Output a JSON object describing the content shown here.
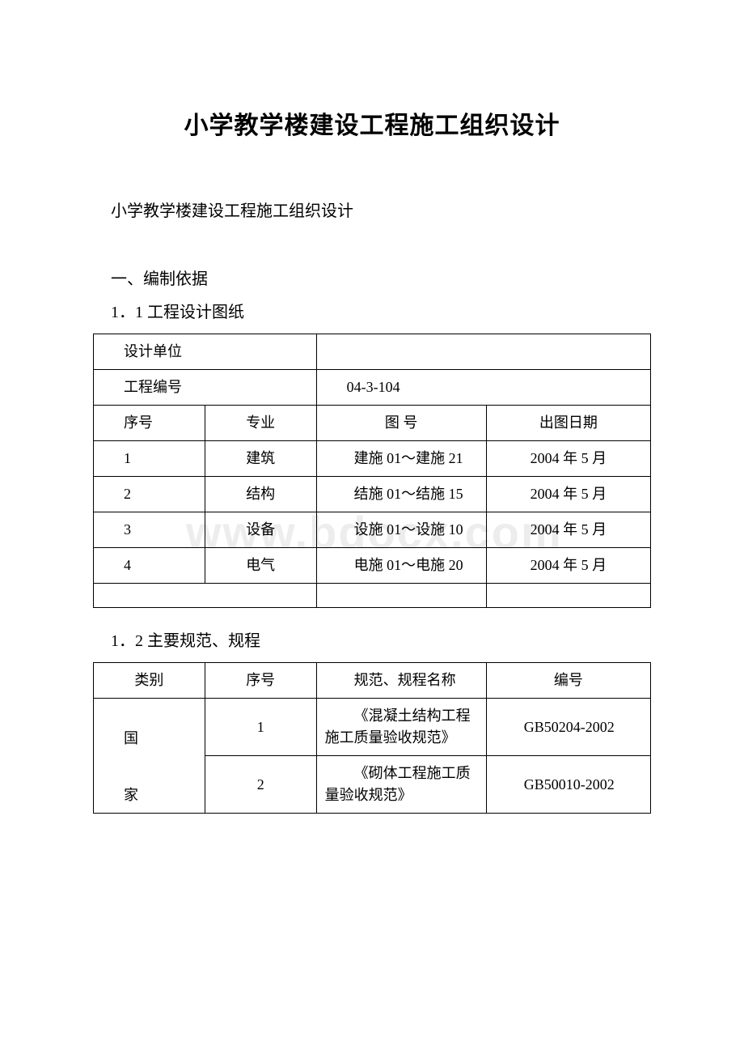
{
  "document": {
    "title": "小学教学楼建设工程施工组织设计",
    "subtitle": "小学教学楼建设工程施工组织设计",
    "section1": "一、编制依据",
    "subsection1_1": "1．1 工程设计图纸",
    "subsection1_2": "1．2 主要规范、规程"
  },
  "table1": {
    "rows": [
      {
        "label": "设计单位",
        "value": ""
      },
      {
        "label": "工程编号",
        "value": "04-3-104"
      }
    ],
    "headers": {
      "col1": "序号",
      "col2": "专业",
      "col3": "图 号",
      "col4": "出图日期"
    },
    "data": [
      {
        "seq": "1",
        "major": "建筑",
        "drawing": "建施 01～建施 21",
        "date": "2004 年 5 月"
      },
      {
        "seq": "2",
        "major": "结构",
        "drawing": "结施 01～结施 15",
        "date": "2004 年 5 月"
      },
      {
        "seq": "3",
        "major": "设备",
        "drawing": "设施 01～设施 10",
        "date": "2004 年 5 月"
      },
      {
        "seq": "4",
        "major": "电气",
        "drawing": "电施 01～电施 20",
        "date": "2004 年 5 月"
      }
    ]
  },
  "table2": {
    "headers": {
      "col1": "类别",
      "col2": "序号",
      "col3": "规范、规程名称",
      "col4": "编号"
    },
    "category1": "国",
    "category2": "家",
    "data": [
      {
        "seq": "1",
        "name": "《混凝土结构工程施工质量验收规范》",
        "code": "GB50204-2002"
      },
      {
        "seq": "2",
        "name": "《砌体工程施工质量验收规范》",
        "code": "GB50010-2002"
      }
    ]
  },
  "watermark": "www.bdocx.com",
  "colors": {
    "text": "#000000",
    "background": "#ffffff",
    "border": "#000000",
    "watermark": "rgba(190, 190, 190, 0.28)"
  },
  "typography": {
    "title_fontsize": 30,
    "body_fontsize": 20,
    "table_fontsize": 18,
    "font_family": "SimSun"
  }
}
